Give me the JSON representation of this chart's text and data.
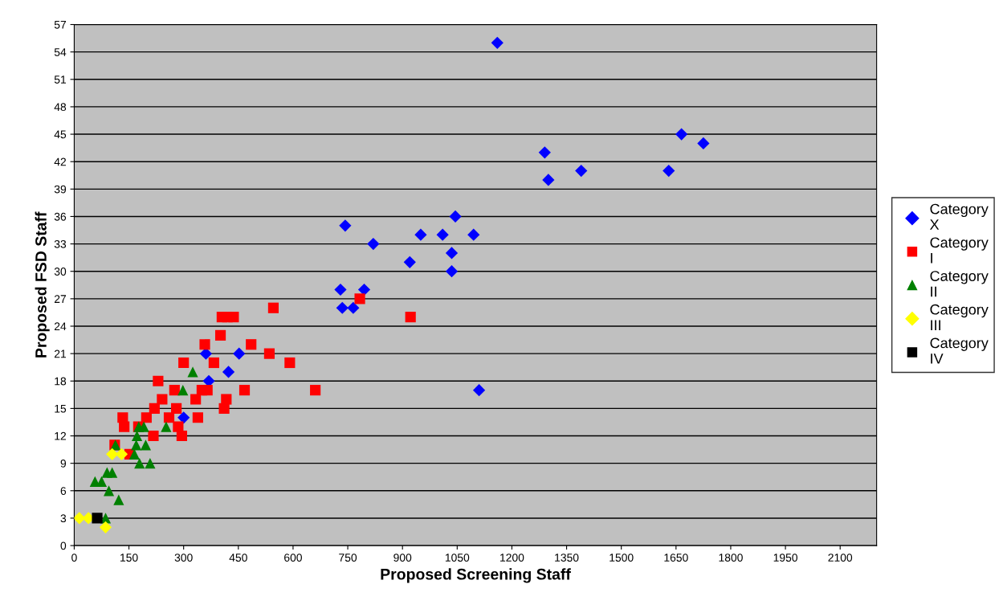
{
  "chart_data": {
    "type": "scatter",
    "xlabel": "Proposed Screening Staff",
    "ylabel": "Proposed FSD Staff",
    "xlim": [
      0,
      2200
    ],
    "xticks": [
      0,
      150,
      300,
      450,
      600,
      750,
      900,
      1050,
      1200,
      1350,
      1500,
      1650,
      1800,
      1950,
      2100
    ],
    "ylim": [
      0,
      57
    ],
    "yticks": [
      0,
      3,
      6,
      9,
      12,
      15,
      18,
      21,
      24,
      27,
      30,
      33,
      36,
      39,
      42,
      45,
      48,
      51,
      54,
      57
    ],
    "grid": "y",
    "legend": "right",
    "series": [
      {
        "name": "Category X",
        "color": "#0000ff",
        "marker": "diamond",
        "x": [
          1160,
          1290,
          1300,
          1390,
          1630,
          1665,
          1725,
          743,
          1045,
          950,
          1010,
          1095,
          820,
          1035,
          920,
          1035,
          730,
          795,
          735,
          765,
          452,
          423,
          361,
          369,
          300,
          1110
        ],
        "values": [
          55,
          43,
          40,
          41,
          41,
          45,
          44,
          35,
          36,
          34,
          34,
          34,
          33,
          32,
          31,
          30,
          28,
          28,
          26,
          26,
          21,
          19,
          21,
          18,
          14,
          17
        ]
      },
      {
        "name": "Category I",
        "color": "#ff0000",
        "marker": "square",
        "x": [
          546,
          405,
          420,
          437,
          401,
          358,
          485,
          535,
          300,
          383,
          591,
          230,
          275,
          350,
          365,
          467,
          241,
          333,
          417,
          220,
          280,
          411,
          133,
          198,
          339,
          260,
          137,
          176,
          285,
          217,
          295,
          111,
          152,
          783,
          922,
          661
        ],
        "values": [
          26,
          25,
          25,
          25,
          23,
          22,
          22,
          21,
          20,
          20,
          20,
          18,
          17,
          17,
          17,
          17,
          16,
          16,
          16,
          15,
          15,
          15,
          14,
          14,
          14,
          14,
          13,
          13,
          13,
          12,
          12,
          11,
          10,
          27,
          25,
          17
        ]
      },
      {
        "name": "Category II",
        "color": "#008000",
        "marker": "triangle",
        "x": [
          325,
          298,
          177,
          191,
          252,
          172,
          113,
          170,
          196,
          165,
          179,
          208,
          90,
          104,
          57,
          75,
          95,
          122,
          86
        ],
        "values": [
          19,
          17,
          13,
          13,
          13,
          12,
          11,
          11,
          11,
          10,
          9,
          9,
          8,
          8,
          7,
          7,
          6,
          5,
          3
        ]
      },
      {
        "name": "Category III",
        "color": "#ffff00",
        "marker": "diamond",
        "x": [
          14,
          39,
          104,
          130,
          86
        ],
        "values": [
          3,
          3,
          10,
          10,
          2
        ]
      },
      {
        "name": "Category IV",
        "color": "#000000",
        "marker": "square",
        "x": [
          63
        ],
        "values": [
          3
        ]
      }
    ]
  }
}
